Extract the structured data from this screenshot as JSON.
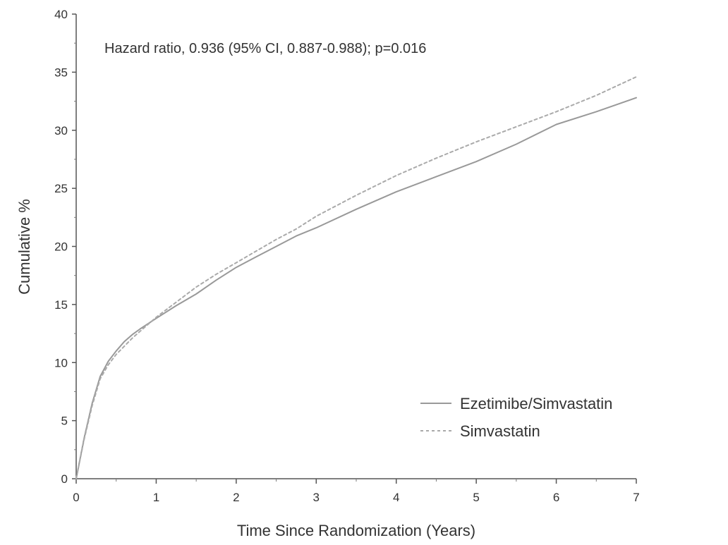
{
  "chart_data": {
    "type": "line",
    "title": "",
    "xlabel": "Time Since Randomization (Years)",
    "ylabel": "Cumulative %",
    "xlim": [
      0,
      7
    ],
    "ylim": [
      0,
      40
    ],
    "x_ticks": [
      0,
      1,
      2,
      3,
      4,
      5,
      6,
      7
    ],
    "y_ticks": [
      0,
      5,
      10,
      15,
      20,
      25,
      30,
      35,
      40
    ],
    "x_minor_step": 0.5,
    "grid": false,
    "legend_position": "bottom-right",
    "annotation": "Hazard ratio, 0.936 (95% CI, 0.887-0.988); p=0.016",
    "series": [
      {
        "name": "Ezetimibe/Simvastatin",
        "style": "solid",
        "color": "#999999",
        "x": [
          0,
          0.1,
          0.2,
          0.3,
          0.4,
          0.5,
          0.6,
          0.7,
          0.8,
          1.0,
          1.25,
          1.5,
          1.75,
          2.0,
          2.25,
          2.5,
          2.75,
          3.0,
          3.5,
          4.0,
          4.5,
          5.0,
          5.5,
          6.0,
          6.5,
          7.0
        ],
        "y": [
          0,
          3.5,
          6.5,
          8.8,
          10.1,
          11.0,
          11.8,
          12.4,
          12.9,
          13.8,
          14.9,
          15.9,
          17.1,
          18.2,
          19.1,
          20.0,
          20.9,
          21.6,
          23.2,
          24.7,
          26.0,
          27.3,
          28.8,
          30.5,
          31.6,
          32.8
        ]
      },
      {
        "name": "Simvastatin",
        "style": "dashed",
        "color": "#aaaaaa",
        "x": [
          0,
          0.1,
          0.2,
          0.3,
          0.4,
          0.5,
          0.6,
          0.7,
          0.8,
          1.0,
          1.25,
          1.5,
          1.75,
          2.0,
          2.25,
          2.5,
          2.75,
          3.0,
          3.5,
          4.0,
          4.5,
          5.0,
          5.5,
          6.0,
          6.5,
          7.0
        ],
        "y": [
          0,
          3.4,
          6.3,
          8.6,
          9.8,
          10.7,
          11.4,
          12.1,
          12.7,
          13.9,
          15.2,
          16.5,
          17.6,
          18.6,
          19.6,
          20.6,
          21.5,
          22.6,
          24.4,
          26.1,
          27.6,
          29.0,
          30.3,
          31.6,
          33.0,
          34.6
        ]
      }
    ]
  }
}
